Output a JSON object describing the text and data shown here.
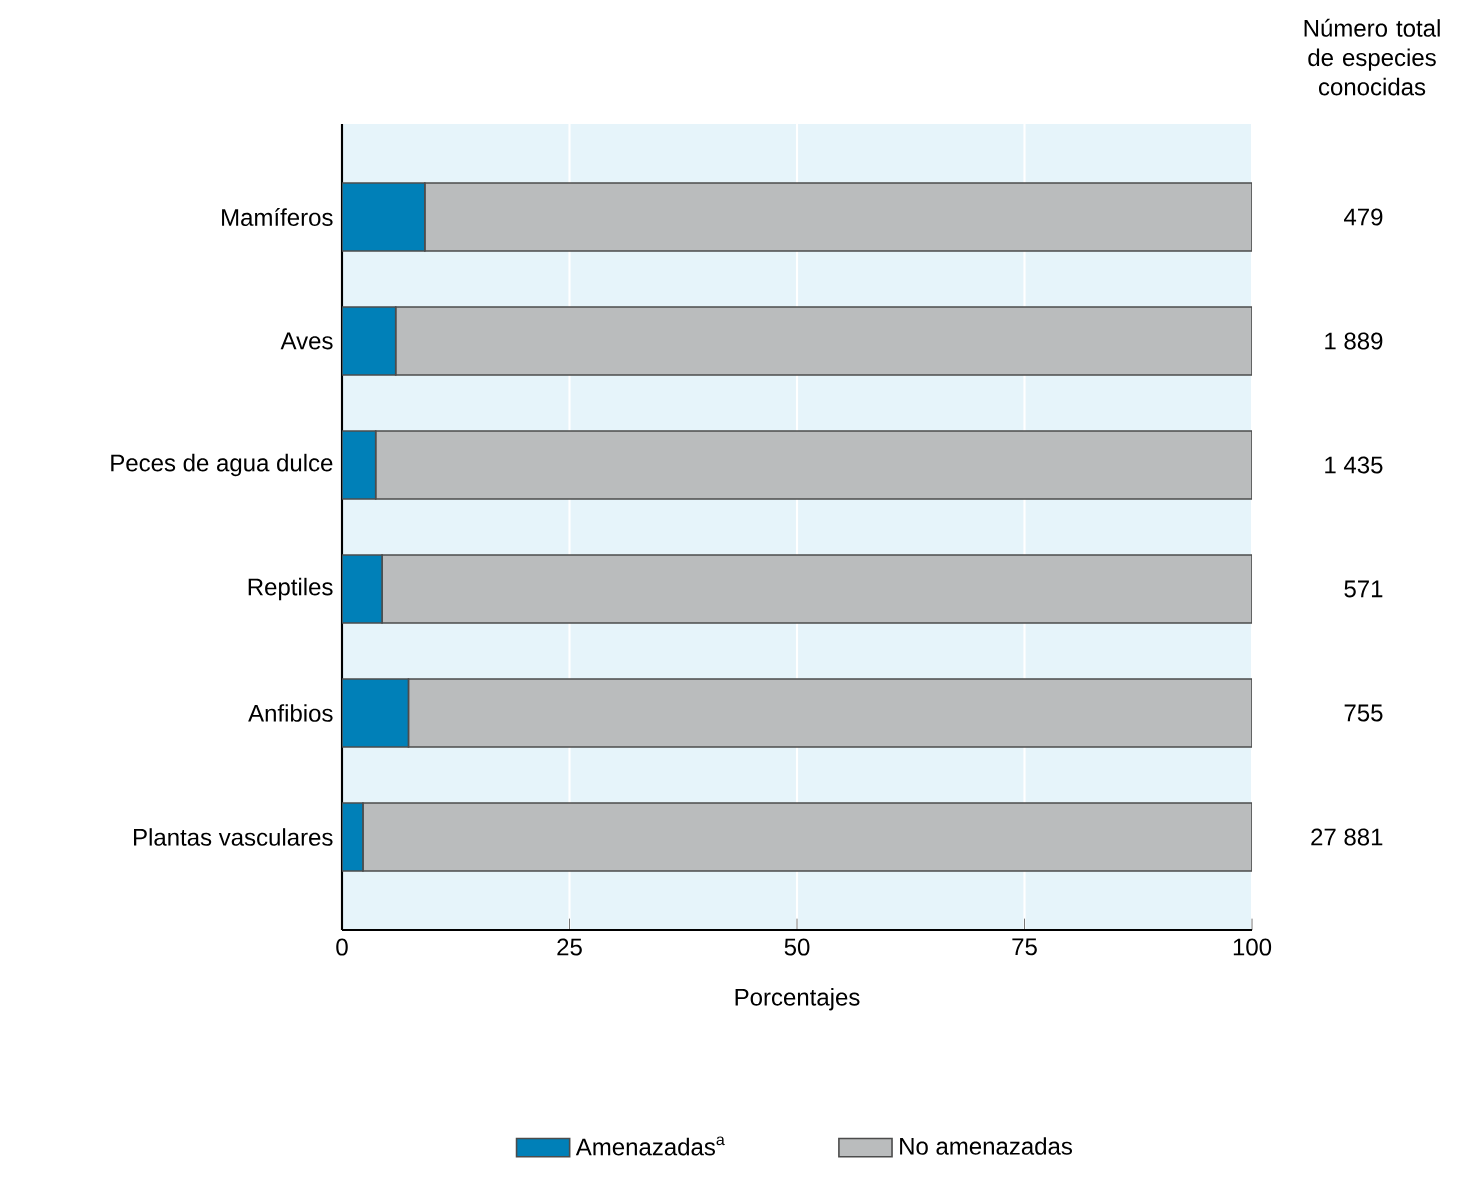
{
  "chart_data": {
    "type": "bar",
    "orientation": "horizontal",
    "stacked": true,
    "xlabel": "Porcentajes",
    "categories": [
      "Mamíferos",
      "Aves",
      "Peces de agua dulce",
      "Reptiles",
      "Anfibios",
      "Plantas vasculares"
    ],
    "series": [
      {
        "name": "Amenazadas$^{a}$",
        "color": "#0080b8",
        "values": [
          9.1,
          5.9,
          3.7,
          4.4,
          7.3,
          2.3
        ]
      },
      {
        "name": "No amenazadas",
        "color": "#babcbd",
        "values": [
          90.9,
          94.1,
          96.3,
          95.6,
          92.7,
          97.7
        ]
      }
    ],
    "xlim": [
      0,
      100
    ],
    "xticks": [
      0,
      25,
      50,
      75,
      100
    ],
    "grid": "x",
    "legend": "bottom",
    "annotations": [
      "Número total de especies conocidas",
      "479",
      "1 889",
      "1 435",
      "571",
      "755",
      "27 881"
    ]
  }
}
